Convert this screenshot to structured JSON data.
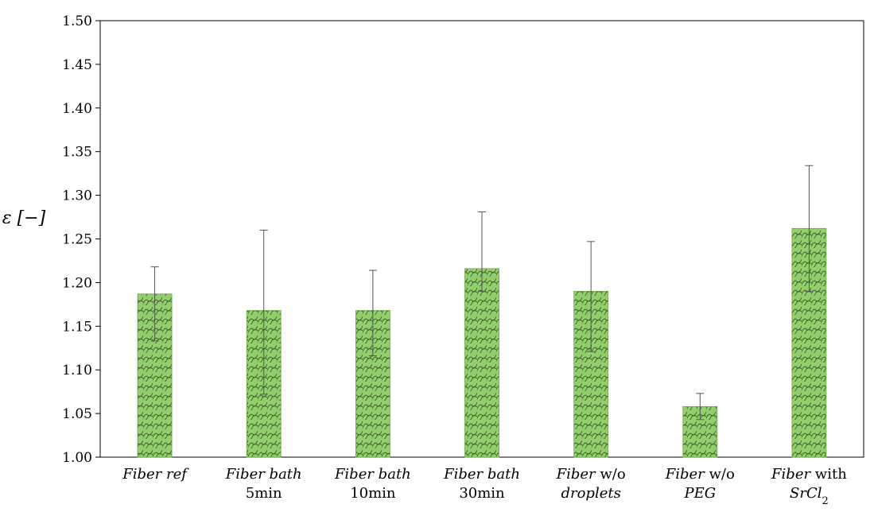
{
  "chart_data": {
    "type": "bar",
    "title": "",
    "xlabel": "",
    "ylabel": "ε [−]",
    "ylim": [
      1.0,
      1.5
    ],
    "ytick_step": 0.05,
    "grid": false,
    "legend": "none",
    "categories": [
      {
        "line1": [
          {
            "text": "Fiber ref",
            "italic": true
          }
        ],
        "line2": []
      },
      {
        "line1": [
          {
            "text": "Fiber bath",
            "italic": true
          }
        ],
        "line2": [
          {
            "text": "5min",
            "italic": false
          }
        ]
      },
      {
        "line1": [
          {
            "text": "Fiber bath",
            "italic": true
          }
        ],
        "line2": [
          {
            "text": "10min",
            "italic": false
          }
        ]
      },
      {
        "line1": [
          {
            "text": "Fiber bath",
            "italic": true
          }
        ],
        "line2": [
          {
            "text": "30min",
            "italic": false
          }
        ]
      },
      {
        "line1": [
          {
            "text": "Fiber",
            "italic": true
          },
          {
            "text": " w/o",
            "italic": false
          }
        ],
        "line2": [
          {
            "text": "droplets",
            "italic": true
          }
        ]
      },
      {
        "line1": [
          {
            "text": "Fiber",
            "italic": true
          },
          {
            "text": " w/o",
            "italic": false
          }
        ],
        "line2": [
          {
            "text": "PEG",
            "italic": true
          }
        ]
      },
      {
        "line1": [
          {
            "text": "Fiber",
            "italic": true
          },
          {
            "text": " with",
            "italic": false
          }
        ],
        "line2": [
          {
            "text": "SrCl",
            "italic": true
          },
          {
            "text": "2",
            "italic": false,
            "sub": true
          }
        ]
      }
    ],
    "values": [
      1.187,
      1.168,
      1.168,
      1.216,
      1.19,
      1.058,
      1.262
    ],
    "error_low": [
      1.133,
      1.072,
      1.116,
      1.19,
      1.121,
      1.043,
      1.19
    ],
    "error_high": [
      1.218,
      1.26,
      1.214,
      1.281,
      1.247,
      1.073,
      1.334
    ],
    "bar_color": "#92cf6c",
    "pattern_color": "#3a5a2a"
  }
}
